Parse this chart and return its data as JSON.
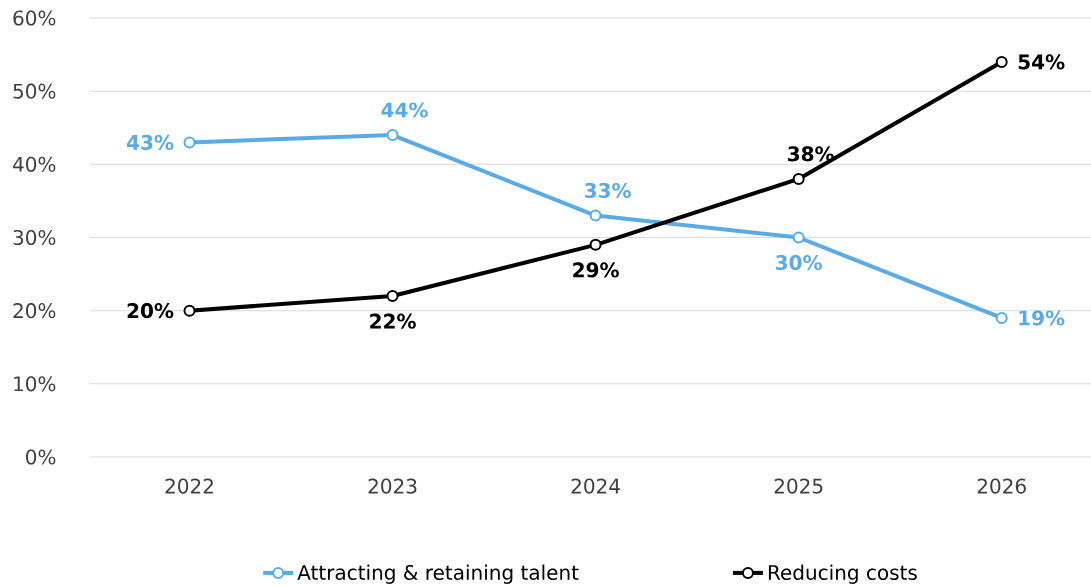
{
  "chart_data": {
    "type": "line",
    "categories": [
      "2022",
      "2023",
      "2024",
      "2025",
      "2026"
    ],
    "series": [
      {
        "name": "Attracting & retaining talent",
        "color": "#5aaae6",
        "values": [
          43,
          44,
          33,
          30,
          19
        ],
        "value_labels": [
          "43%",
          "44%",
          "33%",
          "30%",
          "19%"
        ]
      },
      {
        "name": "Reducing costs",
        "color": "#000000",
        "values": [
          20,
          22,
          29,
          38,
          54
        ],
        "value_labels": [
          "20%",
          "22%",
          "29%",
          "38%",
          "54%"
        ]
      }
    ],
    "ylim": [
      0,
      60
    ],
    "yticks": [
      {
        "value": 0,
        "label": "0%"
      },
      {
        "value": 10,
        "label": "10%"
      },
      {
        "value": 20,
        "label": "20%"
      },
      {
        "value": 30,
        "label": "30%"
      },
      {
        "value": 40,
        "label": "40%"
      },
      {
        "value": 50,
        "label": "50%"
      },
      {
        "value": 60,
        "label": "60%"
      }
    ],
    "grid": "y",
    "legend": "bottom",
    "marker": "circle",
    "line_style": "solid"
  }
}
